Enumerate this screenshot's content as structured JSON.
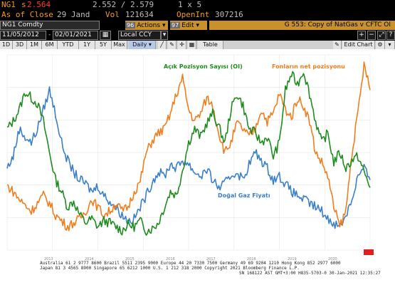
{
  "header": {
    "ticker": "NG1",
    "last_prefix": "s",
    "last_price": "2.564",
    "bid_ask": "2.552 / 2.579",
    "size": "1 x 5",
    "as_of_label": "As of Close",
    "as_of_date": "29 Jand",
    "vol_label": "Vol",
    "vol_value": "121634",
    "openint_label": "OpenInt",
    "openint_value": "307216"
  },
  "titlebar": {
    "security": "NG1 Comdty",
    "actions_num": "96",
    "actions_label": "Actions",
    "edit_num": "97",
    "edit_label": "Edit",
    "graph_title": "G 553: Copy of NatGas v CFTC OI"
  },
  "daterange": {
    "start": "11/05/2012",
    "end": "02/01/2021",
    "currency": "Local CCY"
  },
  "periods": [
    "1D",
    "3D",
    "1M",
    "6M",
    "YTD",
    "1Y",
    "5Y",
    "Max"
  ],
  "frequency": "Daily",
  "table_label": "Table",
  "edit_chart_label": "Edit Chart",
  "legend": {
    "oi": "Açık Pozisyon Sayısı (OI)",
    "net": "Fonların net pozisyonu",
    "price": "Doğal Gaz Fiyatı"
  },
  "colors": {
    "oi": "#1e8c1e",
    "net": "#f07d1e",
    "price": "#3a7fc8",
    "bloomberg_orange": "#f39c12"
  },
  "footer": {
    "line1": "Australia 61 2 9777 8600 Brazil 5511 2395 9000 Europe 44 20 7330 7500 Germany 49 69 9204 1210 Hong Kong 852 2977 6000",
    "line2": "Japan 81 3 4565 8900        Singapore 65 6212 1000        U.S. 1 212 318 2000        Copyright 2021 Bloomberg Finance L.P.",
    "line3": "SN 168122 AST  GMT+3:00 H835-5703-0 30-Jan-2021 12:35:27"
  },
  "chart_data": {
    "type": "line",
    "x_start": "2012-11-05",
    "x_end": "2021-02-01",
    "xlabels": [
      "2013",
      "2014",
      "2015",
      "2016",
      "2017",
      "2018",
      "2019",
      "2020"
    ],
    "series": [
      {
        "name": "Açık Pozisyon Sayısı (OI)",
        "axis": "right",
        "values": [
          0.62,
          0.66,
          0.72,
          0.81,
          0.78,
          0.75,
          0.66,
          0.5,
          0.36,
          0.3,
          0.22,
          0.25,
          0.18,
          0.14,
          0.16,
          0.12,
          0.15,
          0.14,
          0.12,
          0.1,
          0.13,
          0.12,
          0.15,
          0.1,
          0.11,
          0.14,
          0.22,
          0.3,
          0.28,
          0.41,
          0.55,
          0.62,
          0.58,
          0.65,
          0.7,
          0.63,
          0.55,
          0.72,
          0.8,
          0.74,
          0.62,
          0.6,
          0.55,
          0.58,
          0.48,
          0.55,
          0.82,
          0.9,
          0.85,
          0.92,
          0.8,
          0.66,
          0.55,
          0.6,
          0.45,
          0.5,
          0.42,
          0.46,
          0.48,
          0.4,
          0.32
        ]
      },
      {
        "name": "Fonların net pozisyonu",
        "axis": "right2",
        "values": [
          0.33,
          0.3,
          0.26,
          0.23,
          0.2,
          0.24,
          0.28,
          0.24,
          0.18,
          0.15,
          0.12,
          0.14,
          0.16,
          0.2,
          0.26,
          0.22,
          0.18,
          0.2,
          0.24,
          0.2,
          0.22,
          0.3,
          0.35,
          0.5,
          0.56,
          0.6,
          0.62,
          0.7,
          0.8,
          0.88,
          0.72,
          0.66,
          0.7,
          0.78,
          0.74,
          0.6,
          0.5,
          0.55,
          0.65,
          0.62,
          0.58,
          0.62,
          0.72,
          0.66,
          0.7,
          0.8,
          0.72,
          0.68,
          0.78,
          0.74,
          0.66,
          0.5,
          0.45,
          0.38,
          0.22,
          0.12,
          0.2,
          0.5,
          0.7,
          0.95,
          0.82
        ]
      },
      {
        "name": "Doğal Gaz Fiyatı",
        "axis": "left",
        "values": [
          0.42,
          0.48,
          0.62,
          0.58,
          0.55,
          0.62,
          0.72,
          0.82,
          0.7,
          0.55,
          0.46,
          0.4,
          0.36,
          0.34,
          0.3,
          0.33,
          0.28,
          0.25,
          0.22,
          0.18,
          0.15,
          0.16,
          0.22,
          0.28,
          0.35,
          0.4,
          0.38,
          0.44,
          0.42,
          0.46,
          0.44,
          0.4,
          0.38,
          0.41,
          0.36,
          0.32,
          0.34,
          0.38,
          0.4,
          0.36,
          0.44,
          0.5,
          0.46,
          0.42,
          0.36,
          0.38,
          0.34,
          0.3,
          0.28,
          0.26,
          0.24,
          0.22,
          0.2,
          0.16,
          0.14,
          0.12,
          0.18,
          0.26,
          0.38,
          0.42,
          0.36
        ]
      }
    ]
  }
}
